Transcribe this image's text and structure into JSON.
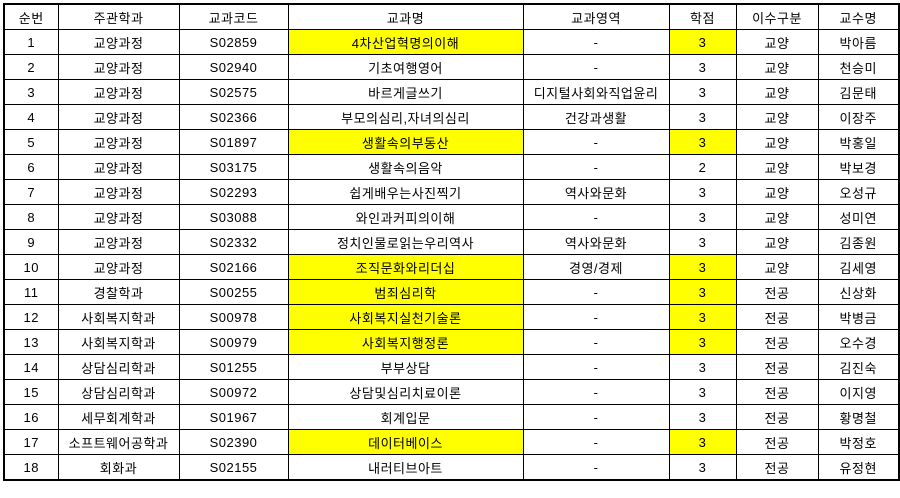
{
  "table": {
    "colors": {
      "highlight_bg": "#FFFF00",
      "highlight_text": "#993300",
      "credit_alert_text": "#EE2222",
      "grid_line": "#000000",
      "background": "#FFFFFF"
    },
    "columns": [
      {
        "key": "no",
        "label": "순번"
      },
      {
        "key": "dept",
        "label": "주관학과"
      },
      {
        "key": "code",
        "label": "교과코드"
      },
      {
        "key": "name",
        "label": "교과명"
      },
      {
        "key": "area",
        "label": "교과영역"
      },
      {
        "key": "credit",
        "label": "학점"
      },
      {
        "key": "type",
        "label": "이수구분"
      },
      {
        "key": "prof",
        "label": "교수명"
      }
    ],
    "rows": [
      {
        "no": "1",
        "dept": "교양과정",
        "code": "S02859",
        "name": "4차산업혁명의이해",
        "area": "-",
        "credit": "3",
        "type": "교양",
        "prof": "박아름",
        "name_highlight": true,
        "credit_highlight": true,
        "credit_red": false
      },
      {
        "no": "2",
        "dept": "교양과정",
        "code": "S02940",
        "name": "기초여행영어",
        "area": "-",
        "credit": "3",
        "type": "교양",
        "prof": "천승미",
        "name_highlight": false,
        "credit_highlight": false,
        "credit_red": false
      },
      {
        "no": "3",
        "dept": "교양과정",
        "code": "S02575",
        "name": "바르게글쓰기",
        "area": "디지털사회와직업윤리",
        "credit": "3",
        "type": "교양",
        "prof": "김문태",
        "name_highlight": false,
        "credit_highlight": false,
        "credit_red": false
      },
      {
        "no": "4",
        "dept": "교양과정",
        "code": "S02366",
        "name": "부모의심리,자녀의심리",
        "area": "건강과생활",
        "credit": "3",
        "type": "교양",
        "prof": "이장주",
        "name_highlight": false,
        "credit_highlight": false,
        "credit_red": false
      },
      {
        "no": "5",
        "dept": "교양과정",
        "code": "S01897",
        "name": "생활속의부동산",
        "area": "-",
        "credit": "3",
        "type": "교양",
        "prof": "박홍일",
        "name_highlight": true,
        "credit_highlight": true,
        "credit_red": false
      },
      {
        "no": "6",
        "dept": "교양과정",
        "code": "S03175",
        "name": "생활속의음악",
        "area": "-",
        "credit": "2",
        "type": "교양",
        "prof": "박보경",
        "name_highlight": false,
        "credit_highlight": false,
        "credit_red": true
      },
      {
        "no": "7",
        "dept": "교양과정",
        "code": "S02293",
        "name": "쉽게배우는사진찍기",
        "area": "역사와문화",
        "credit": "3",
        "type": "교양",
        "prof": "오성규",
        "name_highlight": false,
        "credit_highlight": false,
        "credit_red": false
      },
      {
        "no": "8",
        "dept": "교양과정",
        "code": "S03088",
        "name": "와인과커피의이해",
        "area": "-",
        "credit": "3",
        "type": "교양",
        "prof": "성미연",
        "name_highlight": false,
        "credit_highlight": false,
        "credit_red": false
      },
      {
        "no": "9",
        "dept": "교양과정",
        "code": "S02332",
        "name": "정치인물로읽는우리역사",
        "area": "역사와문화",
        "credit": "3",
        "type": "교양",
        "prof": "김종원",
        "name_highlight": false,
        "credit_highlight": false,
        "credit_red": false
      },
      {
        "no": "10",
        "dept": "교양과정",
        "code": "S02166",
        "name": "조직문화와리더십",
        "area": "경영/경제",
        "credit": "3",
        "type": "교양",
        "prof": "김세영",
        "name_highlight": true,
        "credit_highlight": true,
        "credit_red": false
      },
      {
        "no": "11",
        "dept": "경찰학과",
        "code": "S00255",
        "name": "범죄심리학",
        "area": "-",
        "credit": "3",
        "type": "전공",
        "prof": "신상화",
        "name_highlight": true,
        "credit_highlight": true,
        "credit_red": false
      },
      {
        "no": "12",
        "dept": "사회복지학과",
        "code": "S00978",
        "name": "사회복지실천기술론",
        "area": "-",
        "credit": "3",
        "type": "전공",
        "prof": "박병금",
        "name_highlight": true,
        "credit_highlight": true,
        "credit_red": false
      },
      {
        "no": "13",
        "dept": "사회복지학과",
        "code": "S00979",
        "name": "사회복지행정론",
        "area": "-",
        "credit": "3",
        "type": "전공",
        "prof": "오수경",
        "name_highlight": true,
        "credit_highlight": true,
        "credit_red": false
      },
      {
        "no": "14",
        "dept": "상담심리학과",
        "code": "S01255",
        "name": "부부상담",
        "area": "-",
        "credit": "3",
        "type": "전공",
        "prof": "김진숙",
        "name_highlight": false,
        "credit_highlight": false,
        "credit_red": false
      },
      {
        "no": "15",
        "dept": "상담심리학과",
        "code": "S00972",
        "name": "상담및심리치료이론",
        "area": "-",
        "credit": "3",
        "type": "전공",
        "prof": "이지영",
        "name_highlight": false,
        "credit_highlight": false,
        "credit_red": false
      },
      {
        "no": "16",
        "dept": "세무회계학과",
        "code": "S01967",
        "name": "회계입문",
        "area": "-",
        "credit": "3",
        "type": "전공",
        "prof": "황명철",
        "name_highlight": false,
        "credit_highlight": false,
        "credit_red": false
      },
      {
        "no": "17",
        "dept": "소프트웨어공학과",
        "code": "S02390",
        "name": "데이터베이스",
        "area": "-",
        "credit": "3",
        "type": "전공",
        "prof": "박정호",
        "name_highlight": true,
        "credit_highlight": true,
        "credit_red": false
      },
      {
        "no": "18",
        "dept": "회화과",
        "code": "S02155",
        "name": "내러티브아트",
        "area": "-",
        "credit": "3",
        "type": "전공",
        "prof": "유정현",
        "name_highlight": false,
        "credit_highlight": false,
        "credit_red": false
      }
    ]
  }
}
